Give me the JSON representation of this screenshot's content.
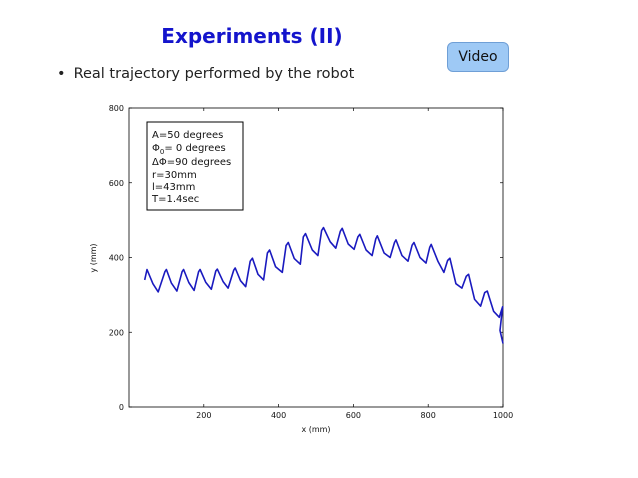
{
  "slide": {
    "title": "Experiments (II)",
    "bullet": "Real trajectory performed by the robot",
    "video_button": "Video"
  },
  "chart_data": {
    "type": "line",
    "title": "",
    "xlabel": "x (mm)",
    "ylabel": "y (mm)",
    "xlim": [
      0,
      1000
    ],
    "ylim": [
      0,
      800
    ],
    "x_ticks": [
      200,
      400,
      600,
      800,
      1000
    ],
    "y_ticks": [
      0,
      200,
      400,
      600,
      800
    ],
    "grid": false,
    "series": [
      {
        "color": "#1a1abf",
        "x": [
          42,
          48,
          64,
          78,
          96,
          100,
          113,
          128,
          142,
          146,
          160,
          174,
          186,
          190,
          205,
          220,
          232,
          236,
          252,
          265,
          280,
          284,
          298,
          312,
          324,
          330,
          345,
          360,
          370,
          376,
          392,
          410,
          420,
          426,
          442,
          458,
          466,
          472,
          490,
          505,
          515,
          520,
          538,
          553,
          565,
          570,
          586,
          602,
          612,
          617,
          634,
          650,
          660,
          664,
          682,
          698,
          710,
          714,
          730,
          746,
          757,
          762,
          778,
          794,
          804,
          808,
          826,
          842,
          852,
          858,
          874,
          890,
          902,
          908,
          924,
          940,
          951,
          958,
          975,
          990,
          999,
          992,
          1000
        ],
        "y": [
          340,
          368,
          330,
          308,
          362,
          368,
          332,
          310,
          362,
          368,
          333,
          312,
          362,
          368,
          334,
          315,
          364,
          369,
          335,
          318,
          366,
          372,
          338,
          322,
          390,
          398,
          355,
          340,
          412,
          420,
          375,
          360,
          432,
          440,
          397,
          382,
          455,
          464,
          420,
          405,
          472,
          480,
          442,
          425,
          470,
          478,
          436,
          422,
          455,
          462,
          420,
          405,
          450,
          458,
          412,
          400,
          440,
          447,
          405,
          390,
          433,
          440,
          400,
          385,
          427,
          435,
          390,
          360,
          392,
          398,
          330,
          318,
          350,
          355,
          288,
          270,
          306,
          310,
          256,
          240,
          268,
          205,
          170
        ]
      }
    ],
    "annotations": [
      "A=50 degrees",
      "Φ0= 0 degrees",
      "ΔΦ=90 degrees",
      "r=30mm",
      "l=43mm",
      "T=1.4sec"
    ]
  }
}
